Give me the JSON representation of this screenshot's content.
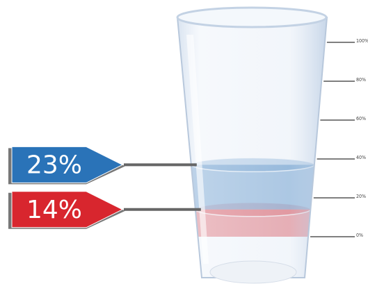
{
  "chart_data": {
    "type": "glass",
    "values": [
      23,
      14
    ],
    "value_labels": [
      "23%",
      "14%"
    ],
    "colors": [
      "#2a73b8",
      "#d8262e"
    ],
    "ylim": [
      0,
      100
    ],
    "yticks": [
      {
        "value": 0,
        "label": "0%"
      },
      {
        "value": 20,
        "label": "20%"
      },
      {
        "value": 40,
        "label": "40%"
      },
      {
        "value": 60,
        "label": "60%"
      },
      {
        "value": 80,
        "label": "80%"
      },
      {
        "value": 100,
        "label": "100%"
      }
    ]
  }
}
